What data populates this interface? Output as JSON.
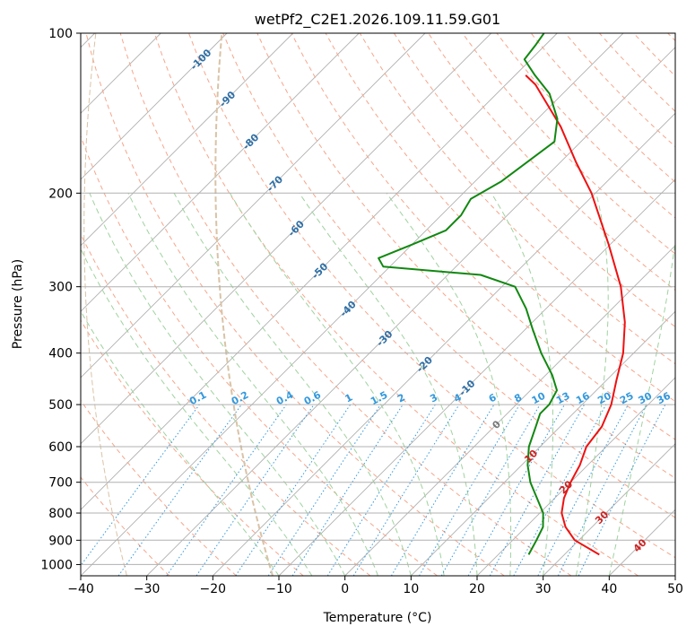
{
  "chart_data": {
    "type": "line",
    "title": "wetPf2_C2E1.2026.109.11.59.G01",
    "xlabel": "Temperature (°C)",
    "ylabel": "Pressure (hPa)",
    "xlim": [
      -40,
      50
    ],
    "ylim": [
      1050,
      100
    ],
    "y_scale": "log",
    "grid": true,
    "x_ticks": [
      "−40",
      "−30",
      "−20",
      "−10",
      "0",
      "10",
      "20",
      "30",
      "40",
      "50"
    ],
    "y_ticks": [
      "100",
      "200",
      "300",
      "400",
      "500",
      "600",
      "700",
      "800",
      "900",
      "1000"
    ],
    "x_tick_values": [
      -40,
      -30,
      -20,
      -10,
      0,
      10,
      20,
      30,
      40,
      50
    ],
    "y_tick_values": [
      100,
      200,
      300,
      400,
      500,
      600,
      700,
      800,
      900,
      1000
    ],
    "series": [
      {
        "kind": "temperature",
        "color": "#ee1111",
        "points": [
          {
            "p": 958,
            "t": 35.3
          },
          {
            "p": 900,
            "t": 29.4
          },
          {
            "p": 850,
            "t": 26.0
          },
          {
            "p": 800,
            "t": 23.3
          },
          {
            "p": 750,
            "t": 21.4
          },
          {
            "p": 700,
            "t": 20.0
          },
          {
            "p": 650,
            "t": 18.8
          },
          {
            "p": 600,
            "t": 17.0
          },
          {
            "p": 550,
            "t": 16.3
          },
          {
            "p": 500,
            "t": 14.4
          },
          {
            "p": 450,
            "t": 11.5
          },
          {
            "p": 400,
            "t": 8.4
          },
          {
            "p": 350,
            "t": 4.0
          },
          {
            "p": 300,
            "t": -2.0
          },
          {
            "p": 250,
            "t": -10.2
          },
          {
            "p": 200,
            "t": -20.6
          },
          {
            "p": 175,
            "t": -27.6
          },
          {
            "p": 150,
            "t": -35.3
          },
          {
            "p": 125,
            "t": -45.5
          },
          {
            "p": 120,
            "t": -48.4
          }
        ]
      },
      {
        "kind": "dewpoint",
        "color": "#118811",
        "points": [
          {
            "p": 958,
            "t": 24.6
          },
          {
            "p": 900,
            "t": 23.6
          },
          {
            "p": 850,
            "t": 22.6
          },
          {
            "p": 800,
            "t": 20.5
          },
          {
            "p": 700,
            "t": 13.9
          },
          {
            "p": 650,
            "t": 10.9
          },
          {
            "p": 600,
            "t": 8.3
          },
          {
            "p": 550,
            "t": 6.3
          },
          {
            "p": 520,
            "t": 5.0
          },
          {
            "p": 500,
            "t": 5.0
          },
          {
            "p": 470,
            "t": 4.0
          },
          {
            "p": 440,
            "t": 1.0
          },
          {
            "p": 400,
            "t": -4.0
          },
          {
            "p": 360,
            "t": -9.0
          },
          {
            "p": 330,
            "t": -13.0
          },
          {
            "p": 300,
            "t": -18.0
          },
          {
            "p": 285,
            "t": -25.0
          },
          {
            "p": 275,
            "t": -41.0
          },
          {
            "p": 265,
            "t": -43.0
          },
          {
            "p": 250,
            "t": -40.0
          },
          {
            "p": 235,
            "t": -37.0
          },
          {
            "p": 220,
            "t": -37.0
          },
          {
            "p": 205,
            "t": -38.0
          },
          {
            "p": 190,
            "t": -36.0
          },
          {
            "p": 160,
            "t": -34.0
          },
          {
            "p": 145,
            "t": -37.0
          },
          {
            "p": 130,
            "t": -42.0
          },
          {
            "p": 120,
            "t": -47.0
          },
          {
            "p": 112,
            "t": -51.0
          },
          {
            "p": 105,
            "t": -51.5
          },
          {
            "p": 100,
            "t": -52.0
          }
        ]
      }
    ],
    "isotherm_labels": [
      {
        "text": "-100",
        "t": -100,
        "p": 112
      },
      {
        "text": "-90",
        "t": -90,
        "p": 133
      },
      {
        "text": "-80",
        "t": -80,
        "p": 160
      },
      {
        "text": "-70",
        "t": -70,
        "p": 192
      },
      {
        "text": "-60",
        "t": -60,
        "p": 233
      },
      {
        "text": "-50",
        "t": -50,
        "p": 280
      },
      {
        "text": "-40",
        "t": -40,
        "p": 330
      },
      {
        "text": "-30",
        "t": -30,
        "p": 375
      },
      {
        "text": "-20",
        "t": -20,
        "p": 420
      },
      {
        "text": "-10",
        "t": -10,
        "p": 465
      },
      {
        "text": "0",
        "t": 0,
        "p": 545
      },
      {
        "text": "10",
        "t": 10,
        "p": 625
      },
      {
        "text": "20",
        "t": 20,
        "p": 715
      },
      {
        "text": "30",
        "t": 30,
        "p": 815
      },
      {
        "text": "40",
        "t": 40,
        "p": 920
      }
    ],
    "mixing_ratio_labels": [
      "0.1",
      "0.2",
      "0.4",
      "0.6",
      "1",
      "1.5",
      "2",
      "3",
      "4",
      "6",
      "8",
      "10",
      "13",
      "16",
      "20",
      "25",
      "30",
      "36"
    ],
    "mixing_ratio_values": [
      0.1,
      0.2,
      0.4,
      0.6,
      1,
      1.5,
      2,
      3,
      4,
      6,
      8,
      10,
      13,
      16,
      20,
      25,
      30,
      36
    ],
    "mixing_ratio_label_pressure": 500,
    "colors": {
      "isotherm": "#b0b0b0",
      "isotherm_label_neg": "#2e6fa6",
      "isotherm_label_pos": "#cc2222",
      "isotherm_label_zero": "#777777",
      "dry_adiabat": "#f7a58a",
      "moist_adiabat": "#9fd29f",
      "mixing_ratio": "#3399dd",
      "hour_curve": "#d9c3a6"
    }
  }
}
